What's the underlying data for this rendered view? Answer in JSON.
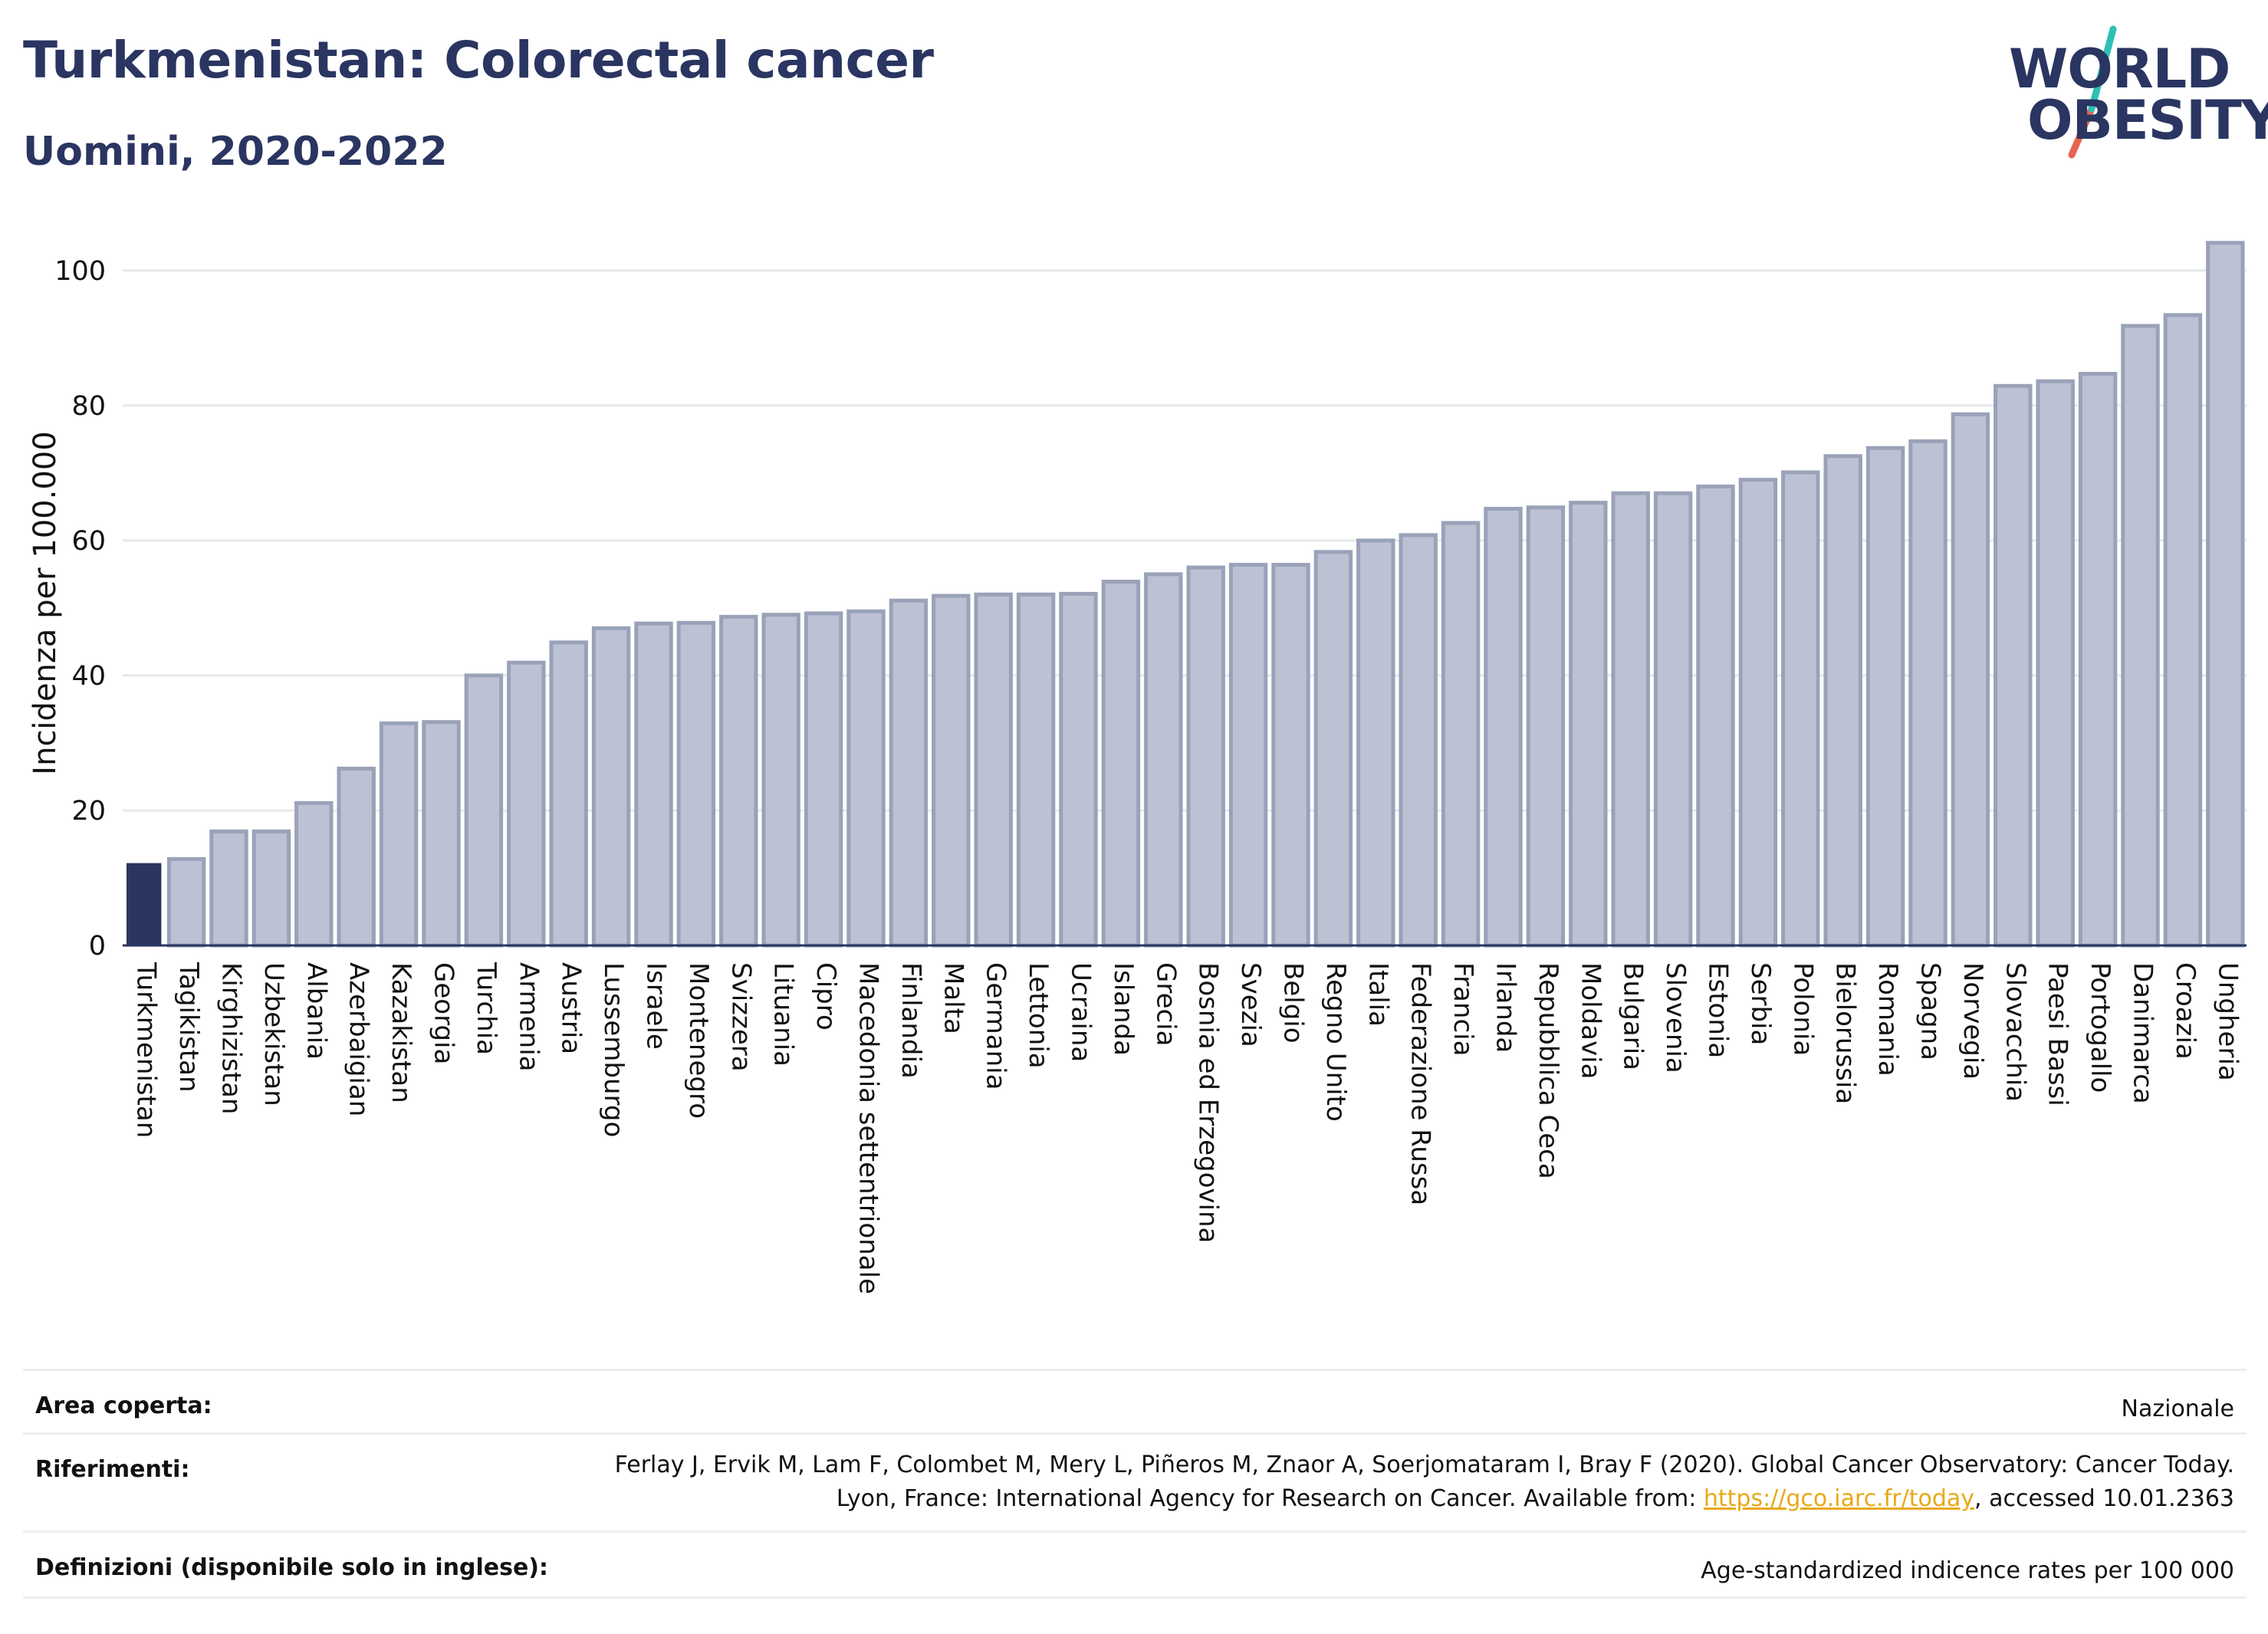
{
  "header": {
    "title": "Turkmenistan: Colorectal cancer",
    "subtitle": "Uomini, 2020-2022"
  },
  "logo": {
    "line1": "WORLD",
    "line2": "OBESITY",
    "colors": {
      "navy": "#2a3561",
      "teal": "#2fc0b5",
      "coral": "#e5654f"
    }
  },
  "colors": {
    "highlight_bar": "#2a3561",
    "bar_fill": "#bcc2d3",
    "bar_stroke": "#9aa2b9",
    "grid": "#e6e8ee",
    "axis": "#2a3561",
    "footer_link": "#e8a917"
  },
  "chart_data": {
    "type": "bar",
    "ylabel": "Incidenza per 100.000",
    "ylim": [
      0,
      106
    ],
    "yticks": [
      0,
      20,
      40,
      60,
      80,
      100
    ],
    "grid": true,
    "highlight": "Turkmenistan",
    "categories": [
      "Turkmenistan",
      "Tagikistan",
      "Kirghizistan",
      "Uzbekistan",
      "Albania",
      "Azerbaigian",
      "Kazakistan",
      "Georgia",
      "Turchia",
      "Armenia",
      "Austria",
      "Lussemburgo",
      "Israele",
      "Montenegro",
      "Svizzera",
      "Lituania",
      "Cipro",
      "Macedonia settentrionale",
      "Finlandia",
      "Malta",
      "Germania",
      "Lettonia",
      "Ucraina",
      "Islanda",
      "Grecia",
      "Bosnia ed Erzegovina",
      "Svezia",
      "Belgio",
      "Regno Unito",
      "Italia",
      "Federazione Russa",
      "Francia",
      "Irlanda",
      "Repubblica Ceca",
      "Moldavia",
      "Bulgaria",
      "Slovenia",
      "Estonia",
      "Serbia",
      "Polonia",
      "Bielorussia",
      "Romania",
      "Spagna",
      "Norvegia",
      "Slovacchia",
      "Paesi Bassi",
      "Portogallo",
      "Danimarca",
      "Croazia",
      "Ungheria"
    ],
    "values": [
      12.2,
      12.8,
      16.9,
      16.9,
      21.1,
      26.2,
      32.9,
      33.1,
      40.0,
      41.9,
      44.9,
      47.0,
      47.7,
      47.8,
      48.7,
      49.0,
      49.2,
      49.5,
      51.1,
      51.8,
      52.0,
      52.0,
      52.1,
      53.9,
      55.0,
      56.0,
      56.4,
      56.4,
      58.3,
      60.0,
      60.8,
      62.6,
      64.7,
      64.9,
      65.6,
      67.0,
      67.0,
      68.0,
      69.0,
      70.1,
      72.5,
      73.7,
      74.7,
      78.7,
      82.9,
      83.6,
      84.7,
      91.8,
      93.4,
      104.1
    ]
  },
  "footer": {
    "area_label": "Area coperta:",
    "area_value": "Nazionale",
    "ref_label": "Riferimenti:",
    "ref_text_1": "Ferlay J, Ervik M, Lam F, Colombet M, Mery L, Piñeros M, Znaor A, Soerjomataram I, Bray F (2020). Global Cancer Observatory: Cancer Today. Lyon, France: International Agency for Research on Cancer. Available from: ",
    "ref_link": "https://gco.iarc.fr/today",
    "ref_text_2": ", accessed 10.01.2363",
    "def_label": "Definizioni (disponibile solo in inglese):",
    "def_value": "Age-standardized indicence rates per 100 000"
  }
}
